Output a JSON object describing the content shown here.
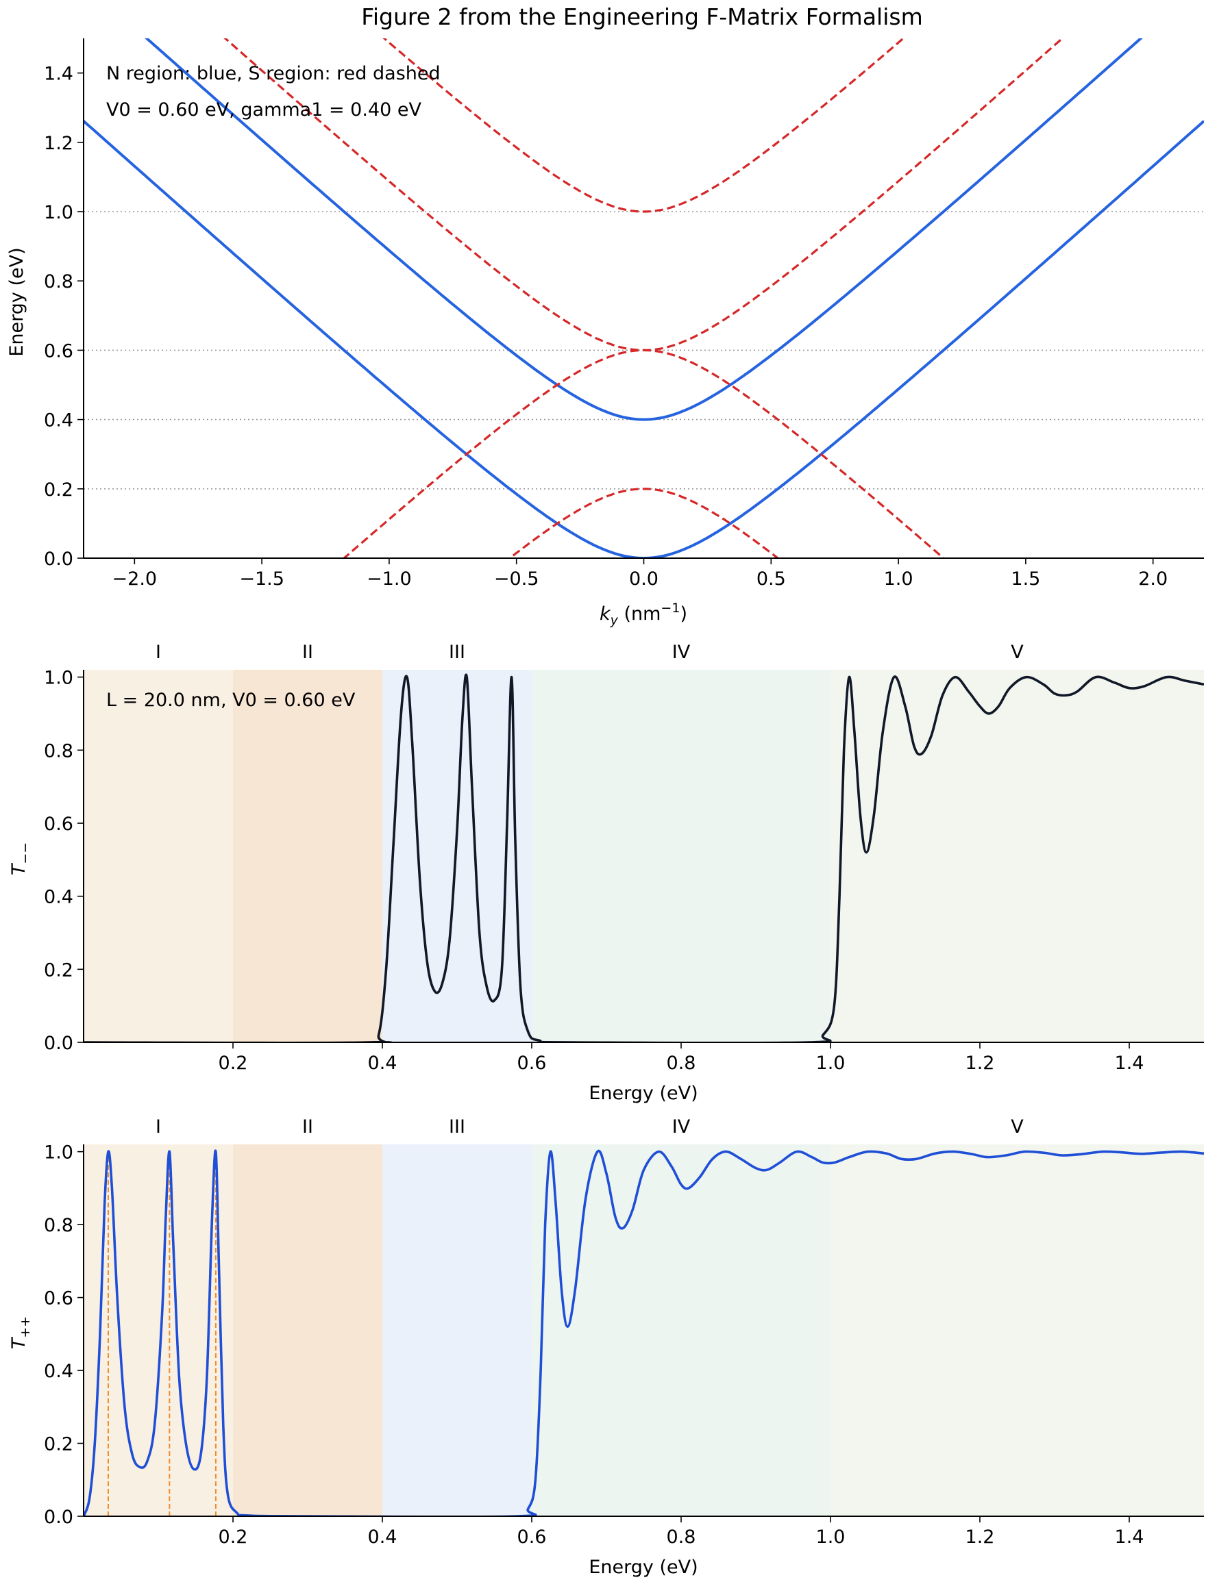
{
  "figure_title": "Figure 2 from the Engineering F-Matrix Formalism",
  "colors": {
    "n_region": "#2563e0",
    "s_region": "#d62728",
    "t_minus": "#111827",
    "t_plus": "#1f4fd6",
    "resonance_marker": "#f28c28",
    "bg_I": "#f9f0e4",
    "bg_II": "#f7e6d3",
    "bg_III": "#ebf1fb",
    "bg_IV": "#edf5f1",
    "bg_V": "#f3f6ef",
    "ref_line": "#999999"
  },
  "chart_data": [
    {
      "type": "line",
      "panel": "band structure",
      "title": "Figure 2 from the Engineering F-Matrix Formalism",
      "xlabel_main": "k",
      "xlabel_sub": "y",
      "xlabel_unit_open": " (nm",
      "xlabel_unit_sup": "−1",
      "xlabel_unit_close": ")",
      "ylabel": "Energy (eV)",
      "xlim": [
        -2.2,
        2.2
      ],
      "ylim": [
        0,
        1.5
      ],
      "xticks": [
        -2.0,
        -1.5,
        -1.0,
        -0.5,
        0.0,
        0.5,
        1.0,
        1.5,
        2.0
      ],
      "xtick_labels": [
        "−2.0",
        "−1.5",
        "−1.0",
        "−0.5",
        "0.0",
        "0.5",
        "1.0",
        "1.5",
        "2.0"
      ],
      "yticks": [
        0.0,
        0.2,
        0.4,
        0.6,
        0.8,
        1.0,
        1.2,
        1.4
      ],
      "ytick_labels": [
        "0.0",
        "0.2",
        "0.4",
        "0.6",
        "0.8",
        "1.0",
        "1.2",
        "1.4"
      ],
      "reference_lines": [
        0.2,
        0.4,
        0.6,
        1.0
      ],
      "annotations": [
        "N region: blue, S region: red dashed",
        "V0 = 0.60 eV, gamma1 = 0.40 eV"
      ],
      "model": {
        "hbar_vF_eV_nm": 0.658,
        "V0_eV": 0.6,
        "gamma1_eV": 0.4
      },
      "series": [
        {
          "name": "N region, lower band",
          "style": "solid",
          "formula": "sqrt((g/2)^2 + (hv k)^2) - g/2"
        },
        {
          "name": "N region, upper band",
          "style": "solid",
          "formula": "sqrt((g/2)^2 + (hv k)^2) + g/2"
        },
        {
          "name": "S region, upper band 1",
          "style": "dashed",
          "formula": "V0 + sqrt((g/2)^2 + (hv k)^2) - g/2"
        },
        {
          "name": "S region, upper band 2",
          "style": "dashed",
          "formula": "V0 + sqrt((g/2)^2 + (hv k)^2) + g/2"
        },
        {
          "name": "S region, lower band 1",
          "style": "dashed",
          "formula": "V0 - sqrt((g/2)^2 + (hv k)^2) + g/2"
        },
        {
          "name": "S region, lower band 2",
          "style": "dashed",
          "formula": "V0 - sqrt((g/2)^2 + (hv k)^2) - g/2"
        }
      ]
    },
    {
      "type": "line",
      "panel": "T minus-minus",
      "xlabel": "Energy (eV)",
      "ylabel_main": "T",
      "ylabel_sub": "−−",
      "xlim": [
        0.0,
        1.5
      ],
      "ylim": [
        0,
        1.02
      ],
      "xticks": [
        0.2,
        0.4,
        0.6,
        0.8,
        1.0,
        1.2,
        1.4
      ],
      "xtick_labels": [
        "0.2",
        "0.4",
        "0.6",
        "0.8",
        "1.0",
        "1.2",
        "1.4"
      ],
      "yticks": [
        0.0,
        0.2,
        0.4,
        0.6,
        0.8,
        1.0
      ],
      "ytick_labels": [
        "0.0",
        "0.2",
        "0.4",
        "0.6",
        "0.8",
        "1.0"
      ],
      "annotation": "L = 20.0 nm, V0 = 0.60 eV",
      "regions": [
        {
          "label": "I",
          "from": 0.0,
          "to": 0.2
        },
        {
          "label": "II",
          "from": 0.2,
          "to": 0.4
        },
        {
          "label": "III",
          "from": 0.4,
          "to": 0.6
        },
        {
          "label": "IV",
          "from": 0.6,
          "to": 1.0
        },
        {
          "label": "V",
          "from": 1.0,
          "to": 1.5
        }
      ],
      "points": [
        [
          0.0,
          0.0
        ],
        [
          0.38,
          0.0
        ],
        [
          0.395,
          0.02
        ],
        [
          0.405,
          0.2
        ],
        [
          0.415,
          0.55
        ],
        [
          0.425,
          0.9
        ],
        [
          0.433,
          1.0
        ],
        [
          0.44,
          0.82
        ],
        [
          0.45,
          0.45
        ],
        [
          0.46,
          0.22
        ],
        [
          0.47,
          0.14
        ],
        [
          0.48,
          0.16
        ],
        [
          0.49,
          0.28
        ],
        [
          0.5,
          0.58
        ],
        [
          0.507,
          0.88
        ],
        [
          0.513,
          1.0
        ],
        [
          0.52,
          0.7
        ],
        [
          0.53,
          0.3
        ],
        [
          0.54,
          0.15
        ],
        [
          0.55,
          0.115
        ],
        [
          0.56,
          0.2
        ],
        [
          0.567,
          0.6
        ],
        [
          0.573,
          1.0
        ],
        [
          0.578,
          0.55
        ],
        [
          0.585,
          0.15
        ],
        [
          0.595,
          0.03
        ],
        [
          0.61,
          0.005
        ],
        [
          0.65,
          0.0
        ],
        [
          0.97,
          0.0
        ],
        [
          0.99,
          0.02
        ],
        [
          1.005,
          0.1
        ],
        [
          1.012,
          0.4
        ],
        [
          1.018,
          0.8
        ],
        [
          1.025,
          1.0
        ],
        [
          1.032,
          0.85
        ],
        [
          1.04,
          0.62
        ],
        [
          1.048,
          0.52
        ],
        [
          1.058,
          0.62
        ],
        [
          1.07,
          0.85
        ],
        [
          1.085,
          1.0
        ],
        [
          1.1,
          0.92
        ],
        [
          1.112,
          0.81
        ],
        [
          1.122,
          0.79
        ],
        [
          1.135,
          0.84
        ],
        [
          1.15,
          0.95
        ],
        [
          1.167,
          1.0
        ],
        [
          1.185,
          0.96
        ],
        [
          1.2,
          0.92
        ],
        [
          1.212,
          0.9
        ],
        [
          1.225,
          0.92
        ],
        [
          1.24,
          0.97
        ],
        [
          1.262,
          1.0
        ],
        [
          1.285,
          0.98
        ],
        [
          1.3,
          0.955
        ],
        [
          1.315,
          0.95
        ],
        [
          1.33,
          0.96
        ],
        [
          1.355,
          1.0
        ],
        [
          1.38,
          0.985
        ],
        [
          1.4,
          0.97
        ],
        [
          1.42,
          0.975
        ],
        [
          1.45,
          1.0
        ],
        [
          1.475,
          0.99
        ],
        [
          1.5,
          0.98
        ]
      ]
    },
    {
      "type": "line",
      "panel": "T plus-plus",
      "xlabel": "Energy (eV)",
      "ylabel_main": "T",
      "ylabel_sub": "++",
      "xlim": [
        0.0,
        1.5
      ],
      "ylim": [
        0,
        1.02
      ],
      "xticks": [
        0.2,
        0.4,
        0.6,
        0.8,
        1.0,
        1.2,
        1.4
      ],
      "xtick_labels": [
        "0.2",
        "0.4",
        "0.6",
        "0.8",
        "1.0",
        "1.2",
        "1.4"
      ],
      "yticks": [
        0.0,
        0.2,
        0.4,
        0.6,
        0.8,
        1.0
      ],
      "ytick_labels": [
        "0.0",
        "0.2",
        "0.4",
        "0.6",
        "0.8",
        "1.0"
      ],
      "resonance_markers": [
        0.033,
        0.115,
        0.177
      ],
      "regions": [
        {
          "label": "I",
          "from": 0.0,
          "to": 0.2
        },
        {
          "label": "II",
          "from": 0.2,
          "to": 0.4
        },
        {
          "label": "III",
          "from": 0.4,
          "to": 0.6
        },
        {
          "label": "IV",
          "from": 0.6,
          "to": 1.0
        },
        {
          "label": "V",
          "from": 1.0,
          "to": 1.5
        }
      ],
      "points": [
        [
          0.0,
          0.0
        ],
        [
          0.008,
          0.05
        ],
        [
          0.015,
          0.2
        ],
        [
          0.022,
          0.5
        ],
        [
          0.028,
          0.85
        ],
        [
          0.033,
          1.0
        ],
        [
          0.038,
          0.9
        ],
        [
          0.045,
          0.6
        ],
        [
          0.055,
          0.3
        ],
        [
          0.065,
          0.17
        ],
        [
          0.075,
          0.135
        ],
        [
          0.085,
          0.15
        ],
        [
          0.095,
          0.25
        ],
        [
          0.105,
          0.55
        ],
        [
          0.11,
          0.82
        ],
        [
          0.115,
          1.0
        ],
        [
          0.12,
          0.75
        ],
        [
          0.128,
          0.38
        ],
        [
          0.137,
          0.2
        ],
        [
          0.147,
          0.13
        ],
        [
          0.157,
          0.17
        ],
        [
          0.165,
          0.38
        ],
        [
          0.172,
          0.82
        ],
        [
          0.177,
          1.0
        ],
        [
          0.181,
          0.7
        ],
        [
          0.187,
          0.25
        ],
        [
          0.193,
          0.06
        ],
        [
          0.205,
          0.01
        ],
        [
          0.22,
          0.002
        ],
        [
          0.3,
          0.0
        ],
        [
          0.58,
          0.0
        ],
        [
          0.595,
          0.02
        ],
        [
          0.605,
          0.1
        ],
        [
          0.612,
          0.4
        ],
        [
          0.618,
          0.8
        ],
        [
          0.625,
          1.0
        ],
        [
          0.632,
          0.86
        ],
        [
          0.64,
          0.62
        ],
        [
          0.648,
          0.52
        ],
        [
          0.658,
          0.62
        ],
        [
          0.672,
          0.87
        ],
        [
          0.688,
          1.0
        ],
        [
          0.7,
          0.94
        ],
        [
          0.712,
          0.82
        ],
        [
          0.722,
          0.79
        ],
        [
          0.735,
          0.84
        ],
        [
          0.75,
          0.95
        ],
        [
          0.77,
          1.0
        ],
        [
          0.787,
          0.96
        ],
        [
          0.8,
          0.91
        ],
        [
          0.81,
          0.9
        ],
        [
          0.825,
          0.93
        ],
        [
          0.842,
          0.98
        ],
        [
          0.86,
          1.0
        ],
        [
          0.88,
          0.98
        ],
        [
          0.9,
          0.955
        ],
        [
          0.915,
          0.95
        ],
        [
          0.932,
          0.97
        ],
        [
          0.955,
          1.0
        ],
        [
          0.975,
          0.985
        ],
        [
          0.99,
          0.97
        ],
        [
          1.005,
          0.97
        ],
        [
          1.025,
          0.985
        ],
        [
          1.05,
          1.0
        ],
        [
          1.075,
          0.995
        ],
        [
          1.095,
          0.98
        ],
        [
          1.115,
          0.98
        ],
        [
          1.14,
          0.995
        ],
        [
          1.165,
          1.0
        ],
        [
          1.19,
          0.993
        ],
        [
          1.21,
          0.985
        ],
        [
          1.235,
          0.99
        ],
        [
          1.26,
          1.0
        ],
        [
          1.285,
          0.997
        ],
        [
          1.31,
          0.99
        ],
        [
          1.335,
          0.993
        ],
        [
          1.365,
          1.0
        ],
        [
          1.39,
          0.998
        ],
        [
          1.415,
          0.994
        ],
        [
          1.44,
          0.997
        ],
        [
          1.47,
          1.0
        ],
        [
          1.5,
          0.995
        ]
      ]
    }
  ]
}
